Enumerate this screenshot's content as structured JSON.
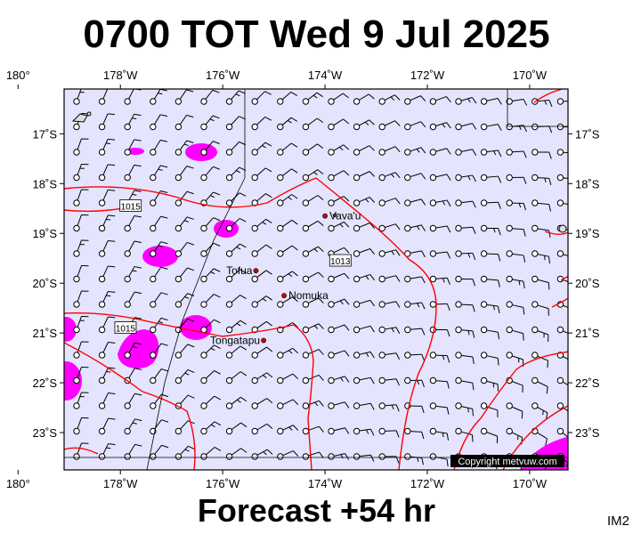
{
  "title": "0700 TOT Wed 9 Jul 2025",
  "footer": "Forecast +54 hr",
  "tag": "IM2",
  "copyright": "Copyright metvuw.com",
  "map": {
    "lon_range": [
      180.9,
      190.75
    ],
    "lat_range": [
      -23.75,
      -16.1
    ],
    "lon_ticks": [
      {
        "lon": 180,
        "label": "180°"
      },
      {
        "lon": 182,
        "label": "178˚W"
      },
      {
        "lon": 184,
        "label": "176˚W"
      },
      {
        "lon": 186,
        "label": "174˚W"
      },
      {
        "lon": 188,
        "label": "172˚W"
      },
      {
        "lon": 190,
        "label": "170˚W"
      }
    ],
    "lat_ticks": [
      {
        "lat": -17,
        "label": "17˚S"
      },
      {
        "lat": -18,
        "label": "18˚S"
      },
      {
        "lat": -19,
        "label": "19˚S"
      },
      {
        "lat": -20,
        "label": "20˚S"
      },
      {
        "lat": -21,
        "label": "21˚S"
      },
      {
        "lat": -22,
        "label": "22˚S"
      },
      {
        "lat": -23,
        "label": "23˚S"
      }
    ],
    "places": [
      {
        "name": "Vava'u",
        "lon": 186.0,
        "lat": -18.65
      },
      {
        "name": "Tofua",
        "lon": 184.65,
        "lat": -19.75
      },
      {
        "name": "Nomuka",
        "lon": 185.2,
        "lat": -20.25
      },
      {
        "name": "Tongatapu",
        "lon": 184.8,
        "lat": -21.15
      }
    ],
    "isobar_labels": [
      {
        "text": "1015",
        "lon": 182.2,
        "lat": -18.45
      },
      {
        "text": "1013",
        "lon": 186.3,
        "lat": -19.55
      },
      {
        "text": "1015",
        "lon": 182.1,
        "lat": -20.9
      }
    ],
    "colors": {
      "ocean": "#e4e4ff",
      "isobar": "#ff0000",
      "rain": "#ff00ff",
      "barb": "#000000"
    }
  }
}
